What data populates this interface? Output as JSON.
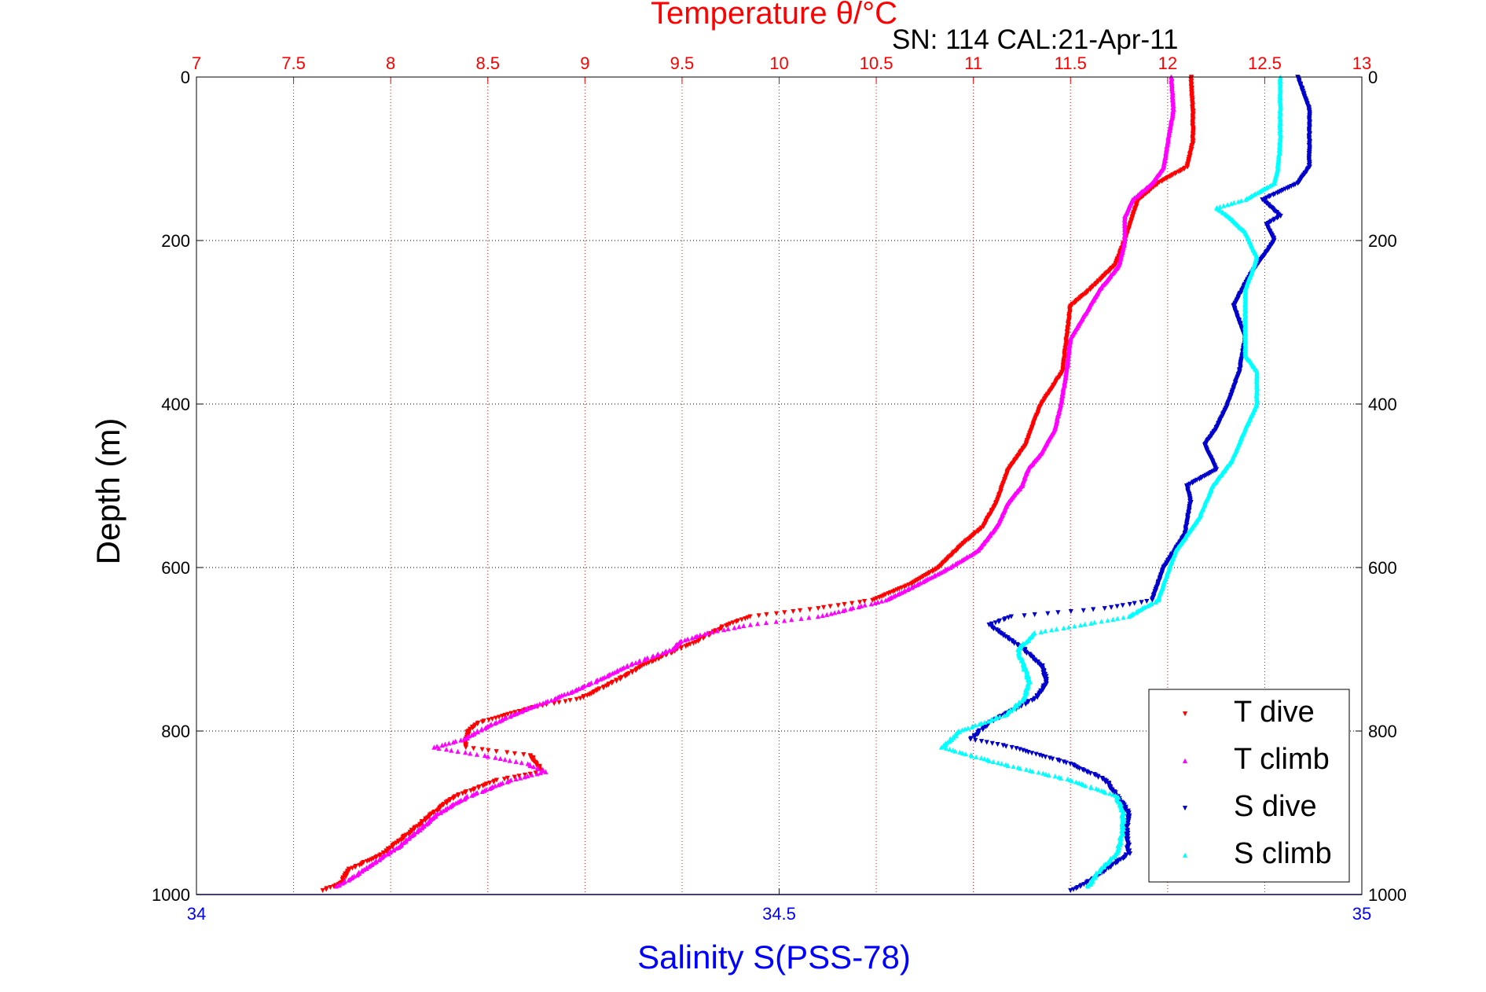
{
  "chart_data": {
    "type": "scatter",
    "title": "Temperature θ/°C",
    "subtitle": "SN: 114  CAL:21-Apr-11",
    "ylabel": "Depth (m)",
    "xlabel_top": "Temperature θ/°C",
    "xlabel_bottom": "Salinity S(PSS-78)",
    "ylim": [
      0,
      1000
    ],
    "y_reversed": true,
    "temperature_axis": {
      "range": [
        7,
        13
      ],
      "ticks": [
        "7",
        "7.5",
        "8",
        "8.5",
        "9",
        "9.5",
        "10",
        "10.5",
        "11",
        "11.5",
        "12",
        "12.5",
        "13"
      ],
      "color": "#ff0000"
    },
    "salinity_axis": {
      "range": [
        34,
        35
      ],
      "ticks": [
        "34",
        "34.5",
        "35"
      ],
      "color": "#0000ff"
    },
    "y_ticks": [
      "0",
      "200",
      "400",
      "600",
      "800",
      "1000"
    ],
    "grid": true,
    "legend_position": "bottom-right",
    "series": [
      {
        "name": "T dive",
        "axis": "temperature",
        "color": "#ff0000",
        "marker": "triangle-down",
        "points": [
          [
            0,
            12.12
          ],
          [
            40,
            12.13
          ],
          [
            80,
            12.13
          ],
          [
            110,
            12.1
          ],
          [
            130,
            11.95
          ],
          [
            150,
            11.85
          ],
          [
            170,
            11.82
          ],
          [
            200,
            11.78
          ],
          [
            230,
            11.73
          ],
          [
            260,
            11.6
          ],
          [
            280,
            11.5
          ],
          [
            320,
            11.48
          ],
          [
            360,
            11.46
          ],
          [
            400,
            11.35
          ],
          [
            430,
            11.3
          ],
          [
            450,
            11.27
          ],
          [
            480,
            11.18
          ],
          [
            520,
            11.12
          ],
          [
            550,
            11.05
          ],
          [
            570,
            10.95
          ],
          [
            600,
            10.82
          ],
          [
            620,
            10.68
          ],
          [
            640,
            10.48
          ],
          [
            650,
            10.2
          ],
          [
            660,
            9.85
          ],
          [
            670,
            9.73
          ],
          [
            690,
            9.58
          ],
          [
            700,
            9.48
          ],
          [
            720,
            9.3
          ],
          [
            740,
            9.15
          ],
          [
            760,
            8.98
          ],
          [
            770,
            8.75
          ],
          [
            790,
            8.45
          ],
          [
            800,
            8.4
          ],
          [
            820,
            8.38
          ],
          [
            830,
            8.72
          ],
          [
            850,
            8.78
          ],
          [
            860,
            8.55
          ],
          [
            880,
            8.33
          ],
          [
            900,
            8.22
          ],
          [
            920,
            8.12
          ],
          [
            950,
            7.96
          ],
          [
            970,
            7.78
          ],
          [
            985,
            7.75
          ],
          [
            995,
            7.65
          ]
        ]
      },
      {
        "name": "T climb",
        "axis": "temperature",
        "color": "#ff00ff",
        "marker": "triangle-up",
        "points": [
          [
            0,
            12.02
          ],
          [
            40,
            12.03
          ],
          [
            80,
            12.0
          ],
          [
            110,
            11.98
          ],
          [
            130,
            11.92
          ],
          [
            150,
            11.82
          ],
          [
            170,
            11.78
          ],
          [
            200,
            11.78
          ],
          [
            230,
            11.75
          ],
          [
            260,
            11.65
          ],
          [
            280,
            11.6
          ],
          [
            320,
            11.5
          ],
          [
            360,
            11.48
          ],
          [
            400,
            11.45
          ],
          [
            430,
            11.42
          ],
          [
            460,
            11.35
          ],
          [
            480,
            11.28
          ],
          [
            500,
            11.25
          ],
          [
            520,
            11.18
          ],
          [
            550,
            11.12
          ],
          [
            580,
            11.02
          ],
          [
            600,
            10.88
          ],
          [
            620,
            10.72
          ],
          [
            640,
            10.55
          ],
          [
            660,
            10.2
          ],
          [
            670,
            9.85
          ],
          [
            680,
            9.63
          ],
          [
            690,
            9.5
          ],
          [
            700,
            9.45
          ],
          [
            720,
            9.22
          ],
          [
            740,
            9.05
          ],
          [
            760,
            8.85
          ],
          [
            780,
            8.63
          ],
          [
            800,
            8.45
          ],
          [
            810,
            8.38
          ],
          [
            820,
            8.22
          ],
          [
            830,
            8.48
          ],
          [
            840,
            8.7
          ],
          [
            850,
            8.8
          ],
          [
            860,
            8.62
          ],
          [
            880,
            8.4
          ],
          [
            900,
            8.25
          ],
          [
            920,
            8.15
          ],
          [
            940,
            8.05
          ],
          [
            960,
            7.92
          ],
          [
            980,
            7.8
          ],
          [
            990,
            7.72
          ]
        ]
      },
      {
        "name": "S dive",
        "axis": "salinity",
        "color": "#0000cc",
        "marker": "triangle-down",
        "points": [
          [
            0,
            34.945
          ],
          [
            40,
            34.955
          ],
          [
            80,
            34.955
          ],
          [
            110,
            34.955
          ],
          [
            130,
            34.945
          ],
          [
            150,
            34.915
          ],
          [
            170,
            34.93
          ],
          [
            180,
            34.918
          ],
          [
            200,
            34.925
          ],
          [
            240,
            34.905
          ],
          [
            280,
            34.89
          ],
          [
            320,
            34.9
          ],
          [
            360,
            34.895
          ],
          [
            400,
            34.885
          ],
          [
            430,
            34.875
          ],
          [
            450,
            34.865
          ],
          [
            480,
            34.875
          ],
          [
            500,
            34.85
          ],
          [
            520,
            34.853
          ],
          [
            560,
            34.848
          ],
          [
            600,
            34.83
          ],
          [
            640,
            34.82
          ],
          [
            650,
            34.78
          ],
          [
            660,
            34.7
          ],
          [
            670,
            34.68
          ],
          [
            700,
            34.71
          ],
          [
            720,
            34.725
          ],
          [
            740,
            34.73
          ],
          [
            760,
            34.72
          ],
          [
            790,
            34.68
          ],
          [
            810,
            34.665
          ],
          [
            820,
            34.7
          ],
          [
            840,
            34.75
          ],
          [
            860,
            34.78
          ],
          [
            880,
            34.79
          ],
          [
            900,
            34.8
          ],
          [
            920,
            34.798
          ],
          [
            950,
            34.8
          ],
          [
            970,
            34.78
          ],
          [
            985,
            34.765
          ],
          [
            995,
            34.75
          ]
        ]
      },
      {
        "name": "S climb",
        "axis": "salinity",
        "color": "#00ffff",
        "marker": "triangle-up",
        "points": [
          [
            0,
            34.93
          ],
          [
            40,
            34.93
          ],
          [
            80,
            34.93
          ],
          [
            110,
            34.928
          ],
          [
            130,
            34.925
          ],
          [
            150,
            34.9
          ],
          [
            160,
            34.875
          ],
          [
            170,
            34.885
          ],
          [
            190,
            34.9
          ],
          [
            220,
            34.91
          ],
          [
            260,
            34.9
          ],
          [
            300,
            34.9
          ],
          [
            340,
            34.9
          ],
          [
            360,
            34.91
          ],
          [
            400,
            34.91
          ],
          [
            430,
            34.9
          ],
          [
            470,
            34.888
          ],
          [
            500,
            34.872
          ],
          [
            540,
            34.86
          ],
          [
            580,
            34.84
          ],
          [
            600,
            34.835
          ],
          [
            640,
            34.825
          ],
          [
            660,
            34.8
          ],
          [
            680,
            34.72
          ],
          [
            700,
            34.705
          ],
          [
            720,
            34.71
          ],
          [
            740,
            34.715
          ],
          [
            760,
            34.71
          ],
          [
            780,
            34.695
          ],
          [
            800,
            34.655
          ],
          [
            820,
            34.64
          ],
          [
            840,
            34.69
          ],
          [
            860,
            34.75
          ],
          [
            880,
            34.79
          ],
          [
            900,
            34.795
          ],
          [
            920,
            34.795
          ],
          [
            950,
            34.79
          ],
          [
            970,
            34.775
          ],
          [
            990,
            34.765
          ]
        ]
      }
    ]
  }
}
